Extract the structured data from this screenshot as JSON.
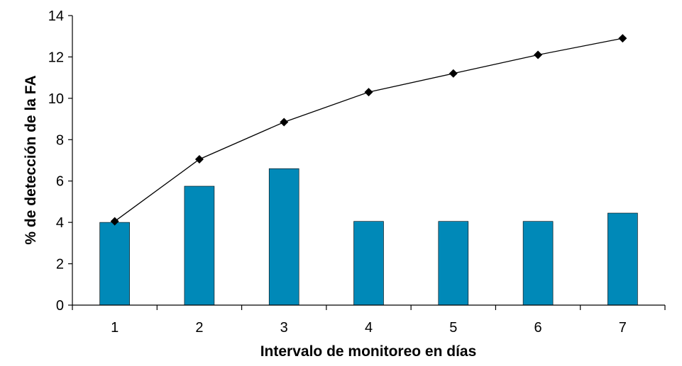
{
  "chart_data": {
    "type": "bar",
    "categories": [
      "1",
      "2",
      "3",
      "4",
      "5",
      "6",
      "7"
    ],
    "series": [
      {
        "type": "bar",
        "values": [
          4.0,
          5.75,
          6.6,
          4.05,
          4.05,
          4.05,
          4.45
        ]
      },
      {
        "type": "line",
        "values": [
          4.05,
          7.05,
          8.85,
          10.3,
          11.2,
          12.1,
          12.9
        ]
      }
    ],
    "title": "",
    "xlabel": "Intervalo de monitoreo en días",
    "ylabel": "% de detección de la FA",
    "ylim": [
      0,
      14
    ],
    "yticks": [
      "0",
      "2",
      "4",
      "6",
      "8",
      "10",
      "12",
      "14"
    ],
    "grid": false,
    "legend": "none"
  },
  "colors": {
    "bar": "#0089b8",
    "line": "#000000",
    "marker": "#000000"
  }
}
